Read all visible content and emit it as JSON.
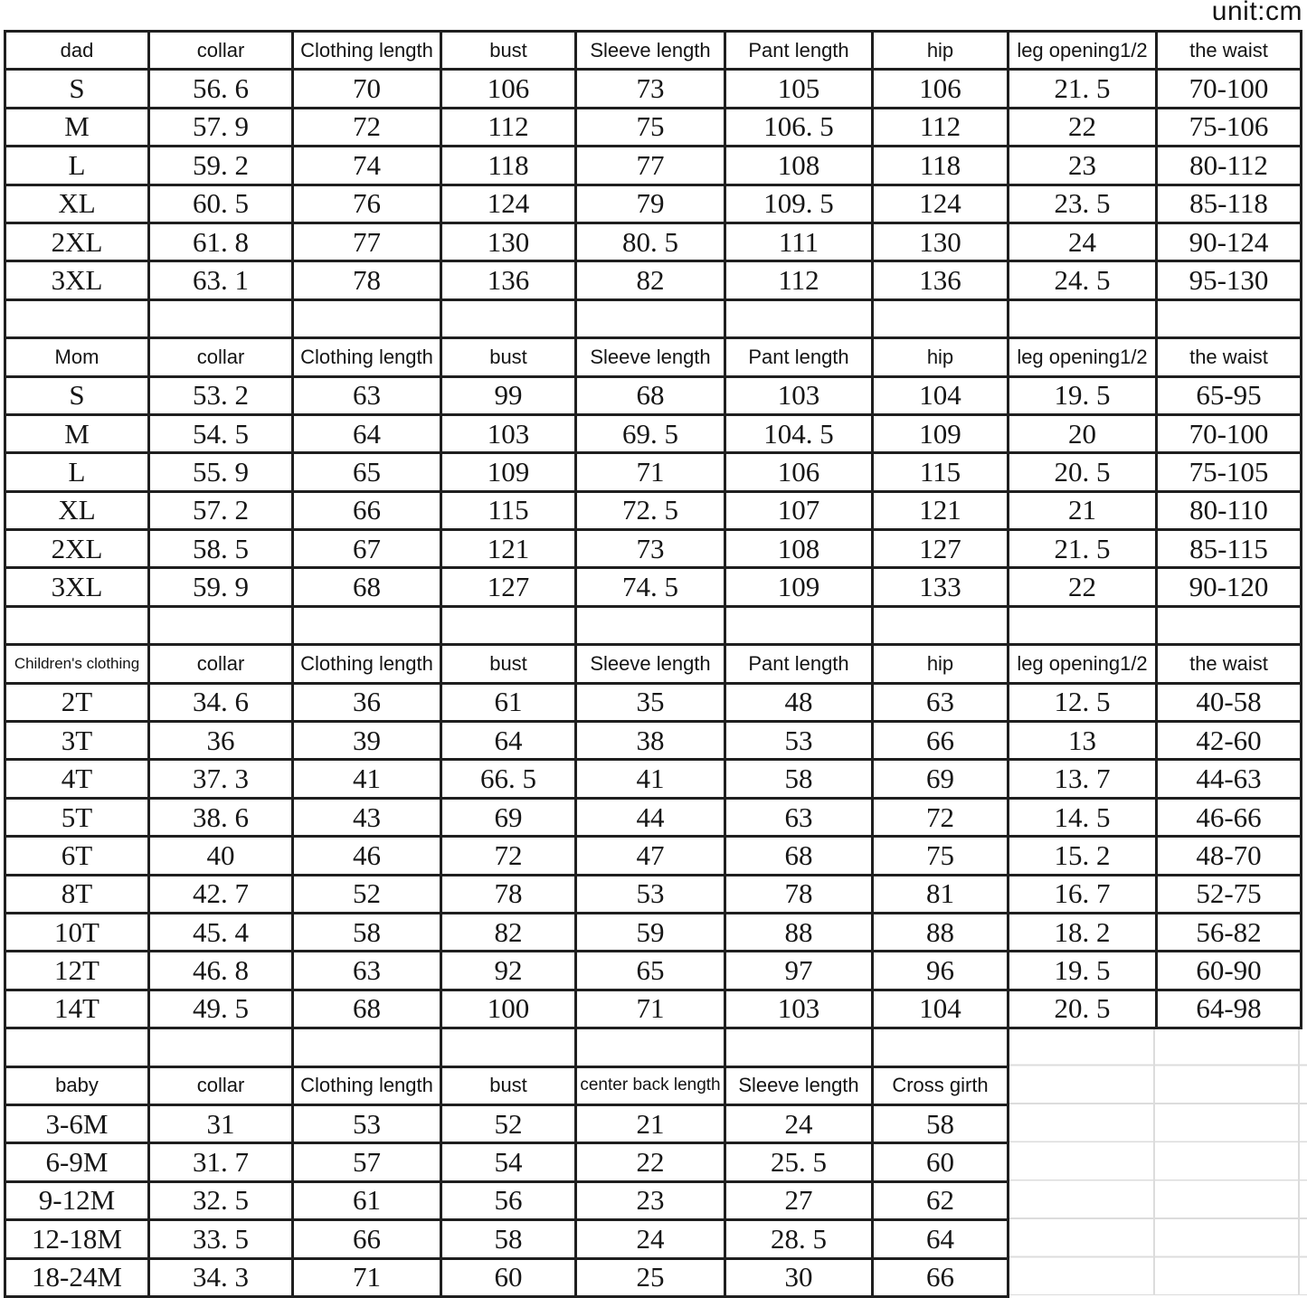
{
  "unit_label": "unit:cm",
  "grid_columns": 9,
  "sections": [
    {
      "name": "dad",
      "header": [
        "dad",
        "collar",
        "Clothing length",
        "bust",
        "Sleeve length",
        "Pant length",
        "hip",
        "leg opening1/2",
        "the waist"
      ],
      "rows": [
        [
          "S",
          "56. 6",
          "70",
          "106",
          "73",
          "105",
          "106",
          "21. 5",
          "70-100"
        ],
        [
          "M",
          "57. 9",
          "72",
          "112",
          "75",
          "106. 5",
          "112",
          "22",
          "75-106"
        ],
        [
          "L",
          "59. 2",
          "74",
          "118",
          "77",
          "108",
          "118",
          "23",
          "80-112"
        ],
        [
          "XL",
          "60. 5",
          "76",
          "124",
          "79",
          "109. 5",
          "124",
          "23. 5",
          "85-118"
        ],
        [
          "2XL",
          "61. 8",
          "77",
          "130",
          "80. 5",
          "111",
          "130",
          "24",
          "90-124"
        ],
        [
          "3XL",
          "63. 1",
          "78",
          "136",
          "82",
          "112",
          "136",
          "24. 5",
          "95-130"
        ]
      ],
      "after_empty_cols": 9
    },
    {
      "name": "mom",
      "header": [
        "Mom",
        "collar",
        "Clothing length",
        "bust",
        "Sleeve length",
        "Pant length",
        "hip",
        "leg opening1/2",
        "the waist"
      ],
      "rows": [
        [
          "S",
          "53. 2",
          "63",
          "99",
          "68",
          "103",
          "104",
          "19. 5",
          "65-95"
        ],
        [
          "M",
          "54. 5",
          "64",
          "103",
          "69. 5",
          "104. 5",
          "109",
          "20",
          "70-100"
        ],
        [
          "L",
          "55. 9",
          "65",
          "109",
          "71",
          "106",
          "115",
          "20. 5",
          "75-105"
        ],
        [
          "XL",
          "57. 2",
          "66",
          "115",
          "72. 5",
          "107",
          "121",
          "21",
          "80-110"
        ],
        [
          "2XL",
          "58. 5",
          "67",
          "121",
          "73",
          "108",
          "127",
          "21. 5",
          "85-115"
        ],
        [
          "3XL",
          "59. 9",
          "68",
          "127",
          "74. 5",
          "109",
          "133",
          "22",
          "90-120"
        ]
      ],
      "after_empty_cols": 9
    },
    {
      "name": "children",
      "header": [
        "Children's clothing",
        "collar",
        "Clothing length",
        "bust",
        "Sleeve length",
        "Pant length",
        "hip",
        "leg opening1/2",
        "the waist"
      ],
      "rows": [
        [
          "2T",
          "34. 6",
          "36",
          "61",
          "35",
          "48",
          "63",
          "12. 5",
          "40-58"
        ],
        [
          "3T",
          "36",
          "39",
          "64",
          "38",
          "53",
          "66",
          "13",
          "42-60"
        ],
        [
          "4T",
          "37. 3",
          "41",
          "66. 5",
          "41",
          "58",
          "69",
          "13. 7",
          "44-63"
        ],
        [
          "5T",
          "38. 6",
          "43",
          "69",
          "44",
          "63",
          "72",
          "14. 5",
          "46-66"
        ],
        [
          "6T",
          "40",
          "46",
          "72",
          "47",
          "68",
          "75",
          "15. 2",
          "48-70"
        ],
        [
          "8T",
          "42. 7",
          "52",
          "78",
          "53",
          "78",
          "81",
          "16. 7",
          "52-75"
        ],
        [
          "10T",
          "45. 4",
          "58",
          "82",
          "59",
          "88",
          "88",
          "18. 2",
          "56-82"
        ],
        [
          "12T",
          "46. 8",
          "63",
          "92",
          "65",
          "97",
          "96",
          "19. 5",
          "60-90"
        ],
        [
          "14T",
          "49. 5",
          "68",
          "100",
          "71",
          "103",
          "104",
          "20. 5",
          "64-98"
        ]
      ],
      "after_empty_cols": 7
    },
    {
      "name": "baby",
      "header": [
        "baby",
        "collar",
        "Clothing length",
        "bust",
        "center back length",
        "Sleeve length",
        "Cross girth"
      ],
      "rows": [
        [
          "3-6M",
          "31",
          "53",
          "52",
          "21",
          "24",
          "58"
        ],
        [
          "6-9M",
          "31. 7",
          "57",
          "54",
          "22",
          "25. 5",
          "60"
        ],
        [
          "9-12M",
          "32. 5",
          "61",
          "56",
          "23",
          "27",
          "62"
        ],
        [
          "12-18M",
          "33. 5",
          "66",
          "58",
          "24",
          "28. 5",
          "64"
        ],
        [
          "18-24M",
          "34. 3",
          "71",
          "60",
          "25",
          "30",
          "66"
        ]
      ],
      "after_empty_cols": 0
    }
  ]
}
